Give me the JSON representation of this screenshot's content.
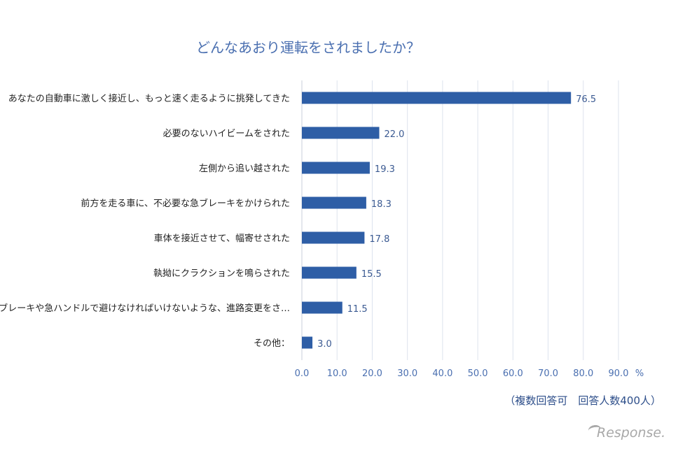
{
  "chart_data": {
    "type": "bar",
    "orientation": "horizontal",
    "title": "どんなあおり運転をされましたか？",
    "categories": [
      "あなたの自動車に激しく接近し、もっと速く走るように挑発してきた",
      "必要のないハイビームをされた",
      "左側から追い越された",
      "前方を走る車に、不必要な急ブレーキをかけられた",
      "車体を接近させて、幅寄せされた",
      "執拗にクラクションを鳴らされた",
      "急ブレーキや急ハンドルで避けなければいけないような、進路変更をさ…",
      "その他："
    ],
    "values": [
      76.5,
      22.0,
      19.3,
      18.3,
      17.8,
      15.5,
      11.5,
      3.0
    ],
    "value_labels": [
      "76.5",
      "22.0",
      "19.3",
      "18.3",
      "17.8",
      "15.5",
      "11.5",
      "3.0"
    ],
    "xlim": [
      0,
      90
    ],
    "ticks": [
      "0.0",
      "10.0",
      "20.0",
      "30.0",
      "40.0",
      "50.0",
      "60.0",
      "70.0",
      "80.0",
      "90.0"
    ],
    "unit": "%",
    "grid": true,
    "bar_color": "#2e5ea6",
    "grid_color": "#dde3ee",
    "note": "（複数回答可　回答人数400人）"
  },
  "branding": {
    "logo_text": "esponse.",
    "logo_letter": "R"
  }
}
